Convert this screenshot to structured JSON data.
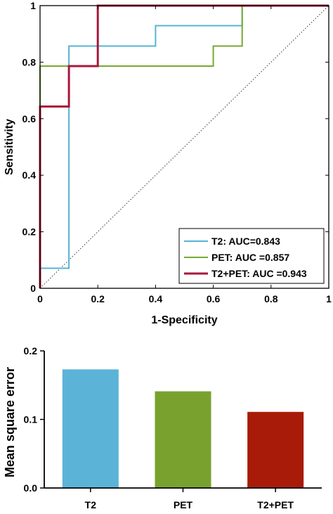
{
  "chart_data": [
    {
      "type": "line",
      "title": "",
      "xlabel": "1-Specificity",
      "ylabel": "Sensitivity",
      "xlim": [
        0,
        1
      ],
      "ylim": [
        0,
        1
      ],
      "x_ticks": [
        "0",
        "0.2",
        "0.4",
        "0.6",
        "0.8",
        "1"
      ],
      "y_ticks": [
        "0",
        "0.2",
        "0.4",
        "0.6",
        "0.8",
        "1"
      ],
      "grid": false,
      "legend_placement": "bottom-right",
      "reference_line": {
        "style": "dotted",
        "color": "#333333",
        "x": [
          0,
          1
        ],
        "y": [
          0,
          1
        ]
      },
      "series": [
        {
          "name": "T2: AUC=0.843",
          "color": "#56b4d3",
          "x": [
            0,
            0,
            0.1,
            0.1,
            0.4,
            0.4,
            0.7,
            0.7,
            1
          ],
          "y": [
            0,
            0.071,
            0.071,
            0.857,
            0.857,
            0.929,
            0.929,
            1,
            1
          ]
        },
        {
          "name": "PET: AUC =0.857",
          "color": "#77a832",
          "x": [
            0,
            0,
            0.6,
            0.6,
            0.7,
            0.7,
            1
          ],
          "y": [
            0.643,
            0.786,
            0.786,
            0.857,
            0.857,
            1,
            1
          ]
        },
        {
          "name": "T2+PET: AUC =0.943",
          "color": "#a8173a",
          "x": [
            0,
            0,
            0.1,
            0.1,
            0.2,
            0.2,
            1
          ],
          "y": [
            0,
            0.643,
            0.643,
            0.786,
            0.786,
            1,
            1
          ]
        }
      ]
    },
    {
      "type": "bar",
      "title": "",
      "xlabel": "",
      "ylabel": "Mean square error",
      "categories": [
        "T2",
        "PET",
        "T2+PET"
      ],
      "values": [
        0.173,
        0.141,
        0.111
      ],
      "colors": [
        "#5bb3d8",
        "#79a12e",
        "#a81b08"
      ],
      "ylim": [
        0,
        0.2
      ],
      "y_ticks": [
        "0.0",
        "0.1",
        "0.2"
      ],
      "grid": false
    }
  ]
}
